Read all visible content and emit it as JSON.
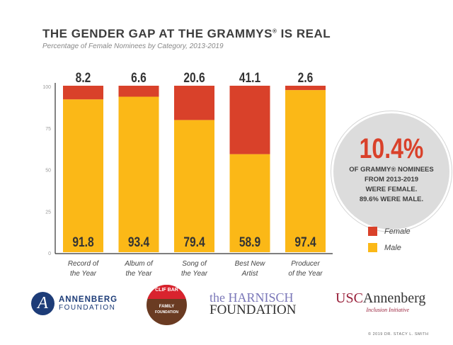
{
  "title": "THE GENDER GAP AT THE GRAMMYS",
  "title_mark": "®",
  "subtitle": "Percentage of Female Nominees by Category, 2013-2019",
  "chart_data": {
    "type": "bar",
    "stacked": true,
    "categories": [
      [
        "Record of",
        "the Year"
      ],
      [
        "Album of",
        "the Year"
      ],
      [
        "Song of",
        "the Year"
      ],
      [
        "Best New",
        "Artist"
      ],
      [
        "Producer",
        "of the Year"
      ]
    ],
    "series": [
      {
        "name": "Female",
        "color": "#d9412a",
        "values": [
          8.2,
          6.6,
          20.6,
          41.1,
          2.6
        ],
        "labels": [
          "8.2",
          "6.6",
          "20.6",
          "41.1",
          "2.6"
        ]
      },
      {
        "name": "Male",
        "color": "#fbb817",
        "values": [
          91.8,
          93.4,
          79.4,
          58.9,
          97.4
        ],
        "labels": [
          "91.8",
          "93.4",
          "79.4",
          "58.9",
          "97.4"
        ]
      }
    ],
    "ylim": [
      0,
      100
    ],
    "yticks": [
      "0",
      "25",
      "50",
      "75",
      "100"
    ],
    "legend": "right"
  },
  "callout": {
    "value": "10.4%",
    "lines": [
      "OF GRAMMY® NOMINEES",
      "FROM 2013-2019",
      "WERE FEMALE.",
      "89.6% WERE MALE."
    ]
  },
  "legend": {
    "female": "Female",
    "male": "Male"
  },
  "logos": {
    "annenberg": [
      "ANNENBERG",
      "FOUNDATION"
    ],
    "clifbar": [
      "CLIF BAR",
      "FAMILY",
      "FOUNDATION"
    ],
    "harnisch": [
      "the HARNISCH",
      "FOUNDATION"
    ],
    "usc": [
      "USC",
      "Annenberg",
      "Inclusion Initiative"
    ]
  },
  "copyright": "© 2019 DR. STACY L. SMITH"
}
